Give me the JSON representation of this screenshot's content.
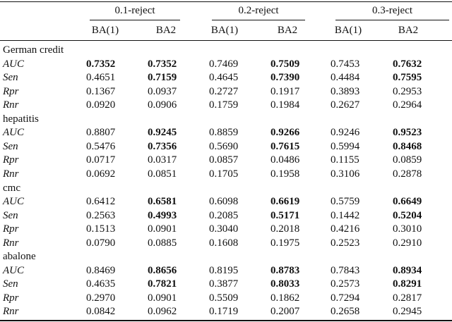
{
  "header": {
    "groups": [
      "0.1-reject",
      "0.2-reject",
      "0.3-reject"
    ],
    "subheaders": [
      "BA(1)",
      "BA2",
      "BA(1)",
      "BA2",
      "BA(1)",
      "BA2"
    ]
  },
  "table": {
    "sections": [
      {
        "name": "German credit",
        "rows": [
          {
            "metric": "AUC",
            "values": [
              "0.7352",
              "0.7352",
              "0.7469",
              "0.7509",
              "0.7453",
              "0.7632"
            ],
            "bold": [
              true,
              true,
              false,
              true,
              false,
              true
            ]
          },
          {
            "metric": "Sen",
            "values": [
              "0.4651",
              "0.7159",
              "0.4645",
              "0.7390",
              "0.4484",
              "0.7595"
            ],
            "bold": [
              false,
              true,
              false,
              true,
              false,
              true
            ]
          },
          {
            "metric": "Rpr",
            "values": [
              "0.1367",
              "0.0937",
              "0.2727",
              "0.1917",
              "0.3893",
              "0.2953"
            ],
            "bold": [
              false,
              false,
              false,
              false,
              false,
              false
            ]
          },
          {
            "metric": "Rnr",
            "values": [
              "0.0920",
              "0.0906",
              "0.1759",
              "0.1984",
              "0.2627",
              "0.2964"
            ],
            "bold": [
              false,
              false,
              false,
              false,
              false,
              false
            ]
          }
        ]
      },
      {
        "name": "hepatitis",
        "rows": [
          {
            "metric": "AUC",
            "values": [
              "0.8807",
              "0.9245",
              "0.8859",
              "0.9266",
              "0.9246",
              "0.9523"
            ],
            "bold": [
              false,
              true,
              false,
              true,
              false,
              true
            ]
          },
          {
            "metric": "Sen",
            "values": [
              "0.5476",
              "0.7356",
              "0.5690",
              "0.7615",
              "0.5994",
              "0.8468"
            ],
            "bold": [
              false,
              true,
              false,
              true,
              false,
              true
            ]
          },
          {
            "metric": "Rpr",
            "values": [
              "0.0717",
              "0.0317",
              "0.0857",
              "0.0486",
              "0.1155",
              "0.0859"
            ],
            "bold": [
              false,
              false,
              false,
              false,
              false,
              false
            ]
          },
          {
            "metric": "Rnr",
            "values": [
              "0.0692",
              "0.0851",
              "0.1705",
              "0.1958",
              "0.3106",
              "0.2878"
            ],
            "bold": [
              false,
              false,
              false,
              false,
              false,
              false
            ]
          }
        ]
      },
      {
        "name": "cmc",
        "rows": [
          {
            "metric": "AUC",
            "values": [
              "0.6412",
              "0.6581",
              "0.6098",
              "0.6619",
              "0.5759",
              "0.6649"
            ],
            "bold": [
              false,
              true,
              false,
              true,
              false,
              true
            ]
          },
          {
            "metric": "Sen",
            "values": [
              "0.2563",
              "0.4993",
              "0.2085",
              "0.5171",
              "0.1442",
              "0.5204"
            ],
            "bold": [
              false,
              true,
              false,
              true,
              false,
              true
            ]
          },
          {
            "metric": "Rpr",
            "values": [
              "0.1513",
              "0.0901",
              "0.3040",
              "0.2018",
              "0.4216",
              "0.3010"
            ],
            "bold": [
              false,
              false,
              false,
              false,
              false,
              false
            ]
          },
          {
            "metric": "Rnr",
            "values": [
              "0.0790",
              "0.0885",
              "0.1608",
              "0.1975",
              "0.2523",
              "0.2910"
            ],
            "bold": [
              false,
              false,
              false,
              false,
              false,
              false
            ]
          }
        ]
      },
      {
        "name": "abalone",
        "rows": [
          {
            "metric": "AUC",
            "values": [
              "0.8469",
              "0.8656",
              "0.8195",
              "0.8783",
              "0.7843",
              "0.8934"
            ],
            "bold": [
              false,
              true,
              false,
              true,
              false,
              true
            ]
          },
          {
            "metric": "Sen",
            "values": [
              "0.4635",
              "0.7821",
              "0.3877",
              "0.8033",
              "0.2573",
              "0.8291"
            ],
            "bold": [
              false,
              true,
              false,
              true,
              false,
              true
            ]
          },
          {
            "metric": "Rpr",
            "values": [
              "0.2970",
              "0.0901",
              "0.5509",
              "0.1862",
              "0.7294",
              "0.2817"
            ],
            "bold": [
              false,
              false,
              false,
              false,
              false,
              false
            ]
          },
          {
            "metric": "Rnr",
            "values": [
              "0.0842",
              "0.0962",
              "0.1719",
              "0.2007",
              "0.2658",
              "0.2945"
            ],
            "bold": [
              false,
              false,
              false,
              false,
              false,
              false
            ]
          }
        ]
      }
    ]
  }
}
